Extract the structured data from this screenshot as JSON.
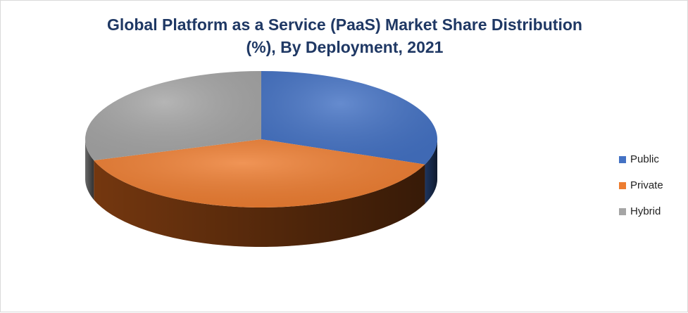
{
  "chart_data": {
    "type": "pie",
    "title_line1": "Global Platform as a Service (PaaS) Market Share Distribution",
    "title_line2": "(%), By Deployment, 2021",
    "categories": [
      "Public",
      "Private",
      "Hybrid"
    ],
    "values": [
      31,
      39,
      30
    ],
    "colors": [
      "#4472c4",
      "#ed7d31",
      "#a5a5a5"
    ],
    "side_colors": [
      "#203864",
      "#7a3a10",
      "#6e6e6e"
    ],
    "legend_position": "right",
    "style": "3d"
  }
}
